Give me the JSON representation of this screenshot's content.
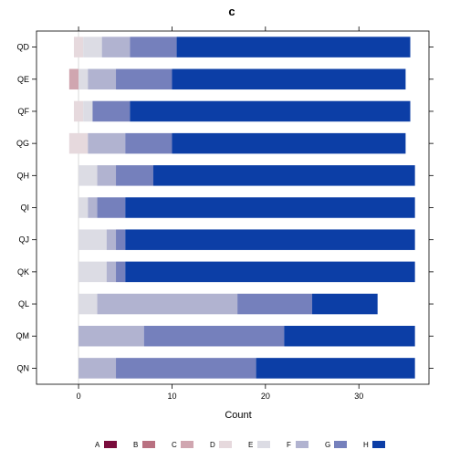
{
  "chart_data": {
    "type": "bar",
    "orientation": "horizontal",
    "stacked": true,
    "diverging": true,
    "title": "c",
    "xlabel": "Count",
    "ylabel": "",
    "xlim": [
      -4.5,
      37.5
    ],
    "xticks": [
      0,
      10,
      20,
      30
    ],
    "grid": false,
    "legend_position": "bottom",
    "categories": [
      "QD",
      "QE",
      "QF",
      "QG",
      "QH",
      "QI",
      "QJ",
      "QK",
      "QL",
      "QM",
      "QN"
    ],
    "series": [
      {
        "name": "A",
        "color": "#7a0c3c",
        "values": [
          0,
          0,
          0,
          0,
          0,
          0,
          0,
          0,
          0,
          0,
          0
        ]
      },
      {
        "name": "B",
        "color": "#b97181",
        "values": [
          0,
          0,
          0,
          0,
          0,
          0,
          0,
          0,
          0,
          0,
          0
        ]
      },
      {
        "name": "C",
        "color": "#d0a6b0",
        "values": [
          0,
          1,
          0,
          0,
          0,
          0,
          0,
          0,
          0,
          0,
          0
        ]
      },
      {
        "name": "D",
        "color": "#e6d9dd",
        "values": [
          1,
          0,
          1,
          2,
          0,
          0,
          0,
          0,
          0,
          0,
          0
        ]
      },
      {
        "name": "E",
        "color": "#dcdce4",
        "values": [
          2,
          1,
          1,
          0,
          2,
          1,
          3,
          3,
          2,
          0,
          0
        ]
      },
      {
        "name": "F",
        "color": "#b1b3d0",
        "values": [
          3,
          3,
          0,
          4,
          2,
          1,
          1,
          1,
          15,
          7,
          4
        ]
      },
      {
        "name": "G",
        "color": "#7580bc",
        "values": [
          5,
          6,
          4,
          5,
          4,
          3,
          1,
          1,
          8,
          15,
          15
        ]
      },
      {
        "name": "H",
        "color": "#0c3ea6",
        "values": [
          25,
          25,
          30,
          25,
          28,
          31,
          31,
          31,
          7,
          14,
          17
        ]
      }
    ]
  }
}
